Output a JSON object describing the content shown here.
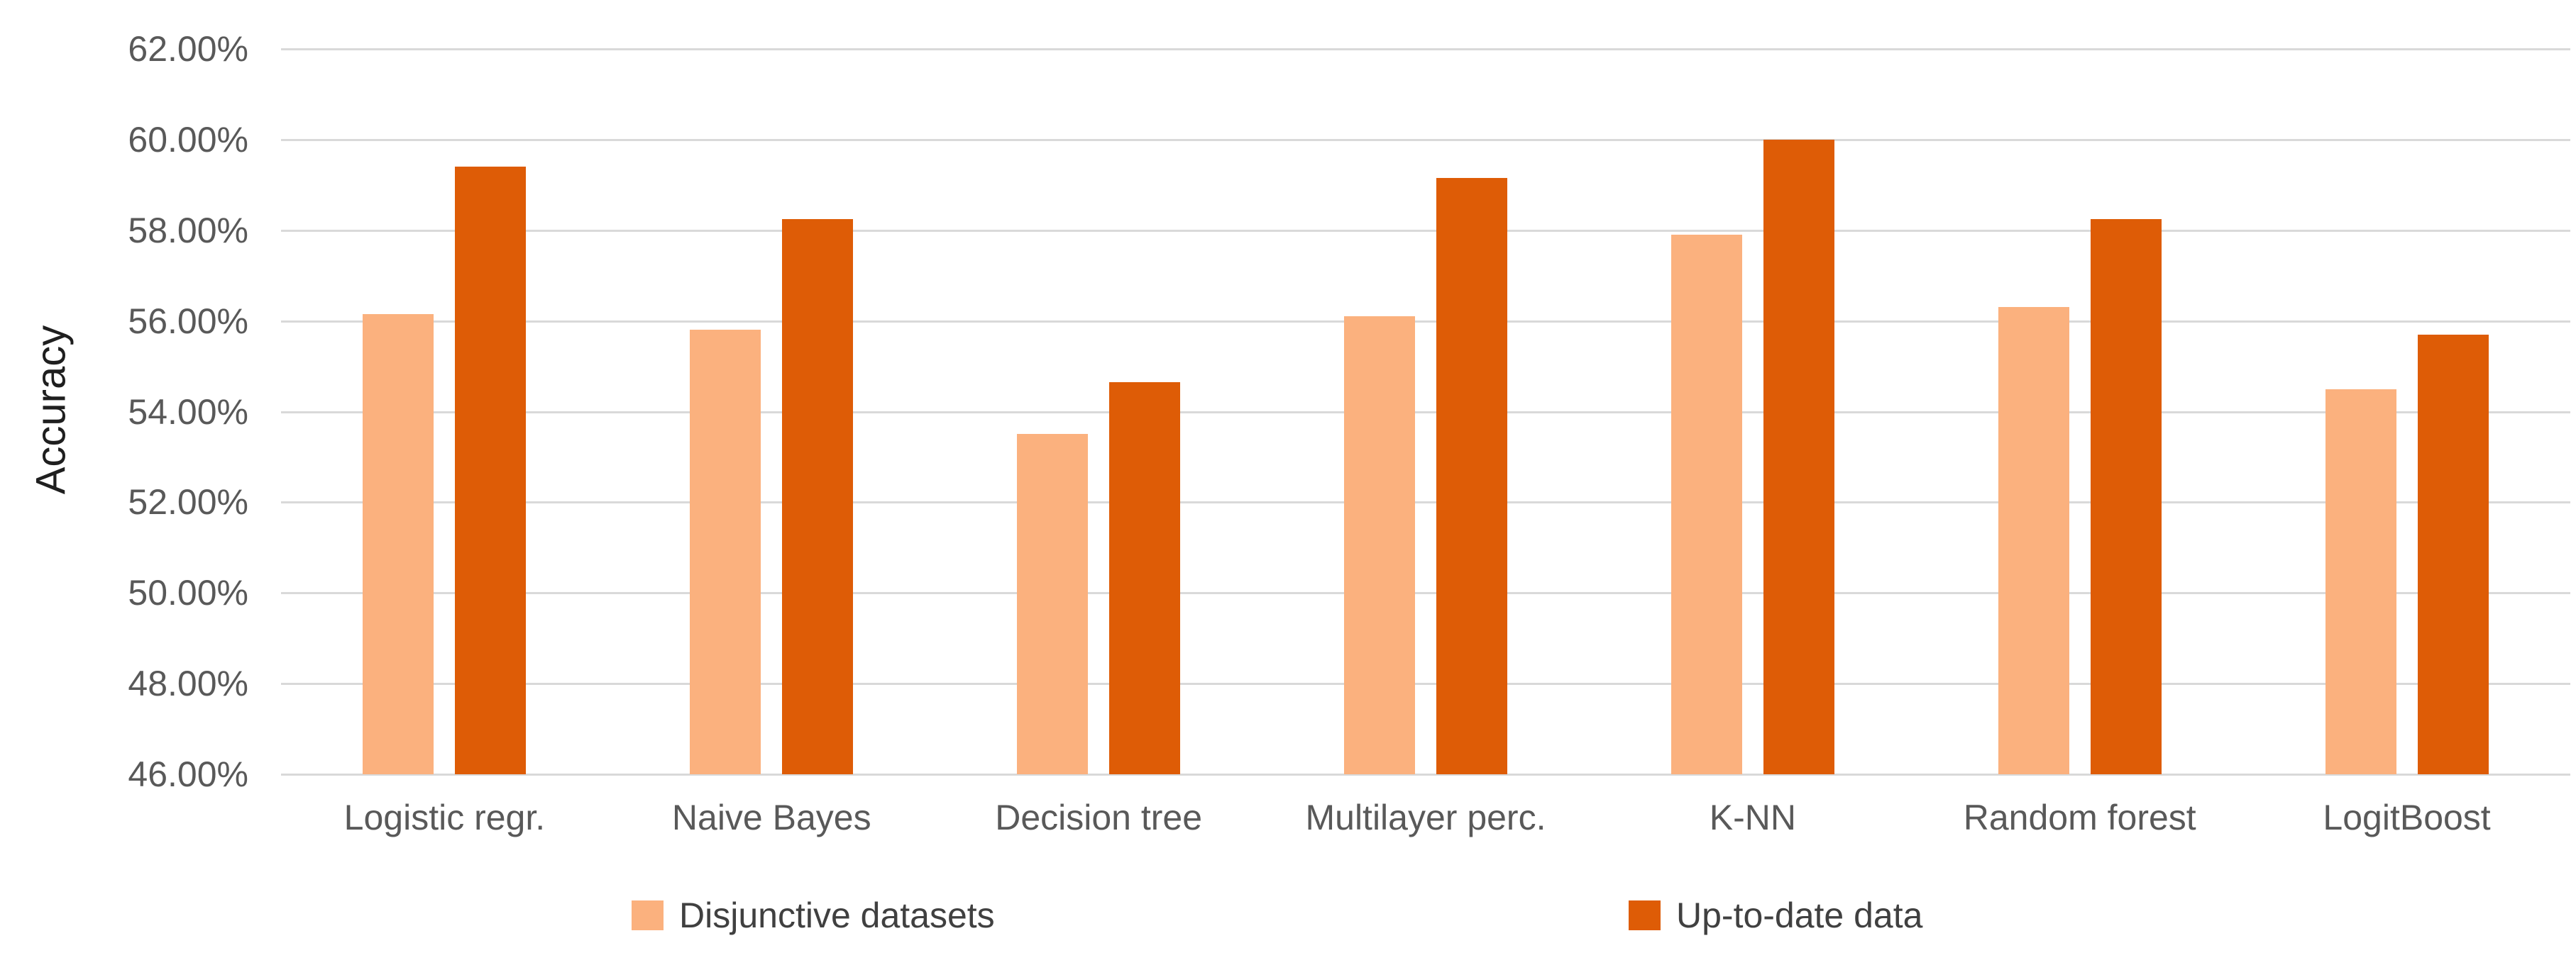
{
  "chart_data": {
    "type": "bar",
    "title": "",
    "xlabel": "",
    "ylabel": "Accuracy",
    "ylim": [
      46,
      62
    ],
    "ytick_step": 2,
    "grid": true,
    "legend_position": "bottom",
    "ytick_labels": [
      "62.00%",
      "60.00%",
      "58.00%",
      "56.00%",
      "54.00%",
      "52.00%",
      "50.00%",
      "48.00%",
      "46.00%"
    ],
    "categories": [
      "Logistic regr.",
      "Naive Bayes",
      "Decision tree",
      "Multilayer perc.",
      "K-NN",
      "Random forest",
      "LogitBoost"
    ],
    "series": [
      {
        "name": "Disjunctive datasets",
        "color": "#FBB17E",
        "values": [
          56.15,
          55.8,
          53.5,
          56.1,
          57.9,
          56.3,
          54.5
        ]
      },
      {
        "name": "Up-to-date data",
        "color": "#DE5C06",
        "values": [
          59.4,
          58.25,
          54.65,
          59.15,
          60.0,
          58.25,
          55.7
        ]
      }
    ],
    "colors": {
      "gridline": "#D9D9D9",
      "tick_text": "#595959",
      "axis_title_text": "#1F1F1F"
    }
  }
}
